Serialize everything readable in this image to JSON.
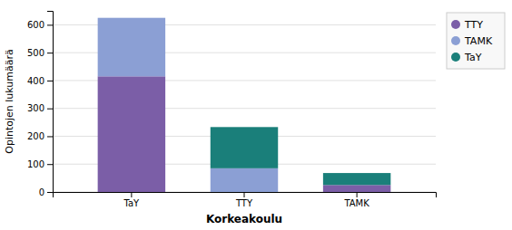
{
  "chart_data": {
    "type": "bar",
    "stacked": true,
    "xlabel": "Korkeakoulu",
    "ylabel": "Opintojen lukumäärä",
    "categories": [
      "TaY",
      "TTY",
      "TAMK"
    ],
    "series": [
      {
        "name": "TTY",
        "color": "#7B5EA7",
        "values": [
          415,
          0,
          25
        ]
      },
      {
        "name": "TAMK",
        "color": "#8B9FD4",
        "values": [
          210,
          85,
          0
        ]
      },
      {
        "name": "TaY",
        "color": "#1a7f7a",
        "values": [
          0,
          148,
          43
        ]
      }
    ],
    "ylim": [
      0,
      650
    ],
    "yticks": [
      0,
      100,
      200,
      300,
      400,
      500,
      600
    ],
    "grid": true,
    "legend": "upper right"
  }
}
